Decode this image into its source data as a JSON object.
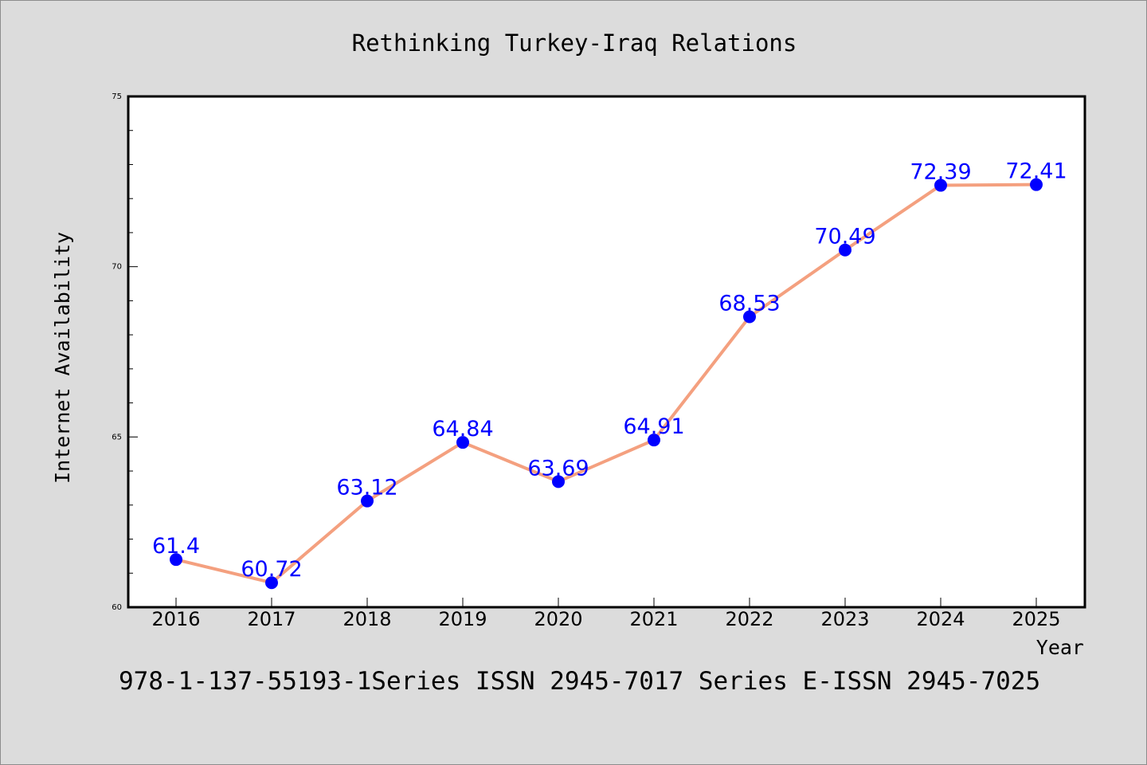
{
  "chart_data": {
    "type": "line",
    "title": "Rethinking Turkey-Iraq Relations",
    "xlabel": "Year",
    "ylabel": "Internet Availability",
    "x": [
      "2016",
      "2017",
      "2018",
      "2019",
      "2020",
      "2021",
      "2022",
      "2023",
      "2024",
      "2025"
    ],
    "series": [
      {
        "values": [
          61.4,
          60.72,
          63.12,
          64.84,
          63.69,
          64.91,
          68.53,
          70.49,
          72.39,
          72.41
        ],
        "labels": [
          "61.4",
          "60.72",
          "63.12",
          "64.84",
          "63.69",
          "64.91",
          "68.53",
          "70.49",
          "72.39",
          "72.41"
        ],
        "line_color": "#f4a07f",
        "marker_color": "#0000ff",
        "label_color": "#0000ff"
      }
    ],
    "ylim": [
      60,
      75
    ],
    "y_ticks": [
      "60",
      "65",
      "70",
      "75"
    ],
    "grid": false,
    "legend": "none"
  },
  "footer": {
    "text": "978-1-137-55193-1Series ISSN 2945-7017 Series E-ISSN 2945-7025"
  },
  "colors": {
    "background": "#dcdcdc",
    "plot_background": "#ffffff",
    "axis": "#000000"
  }
}
